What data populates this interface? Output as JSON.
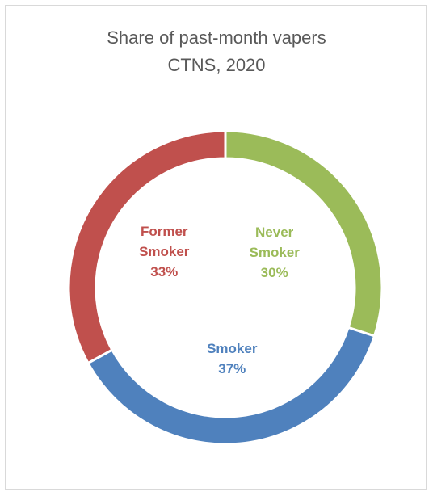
{
  "chart_data": {
    "type": "pie",
    "title": "Share of past-month vapers",
    "subtitle": "CTNS, 2020",
    "donut": true,
    "start_angle_deg": 0,
    "direction": "clockwise",
    "slices": [
      {
        "label_lines": [
          "Never",
          "Smoker"
        ],
        "value": 30,
        "value_label": "30%",
        "color": "#9bbb59",
        "label_color": "#9bbb59"
      },
      {
        "label_lines": [
          "Smoker"
        ],
        "value": 37,
        "value_label": "37%",
        "color": "#4f81bd",
        "label_color": "#4f81bd"
      },
      {
        "label_lines": [
          "Former",
          "Smoker"
        ],
        "value": 33,
        "value_label": "33%",
        "color": "#c0504d",
        "label_color": "#c0504d"
      }
    ],
    "legend": "none"
  }
}
